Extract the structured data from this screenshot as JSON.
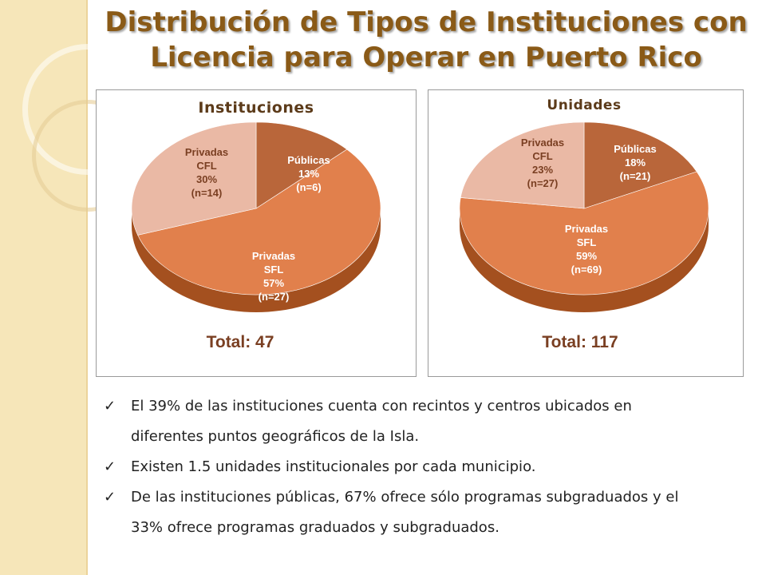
{
  "title": {
    "line1": "Distribución de Tipos de Instituciones con",
    "line2": "Licencia para Operar en Puerto Rico"
  },
  "colors": {
    "title": "#8a5a17",
    "publicas": "#b9663a",
    "sfl": "#e1804c",
    "cfl": "#eab9a5",
    "side": "#a4501f"
  },
  "chart_data": [
    {
      "type": "pie",
      "title": "Instituciones",
      "total_label": "Total: 47",
      "series": [
        {
          "name": "Públicas",
          "percent": 13,
          "count": 6,
          "label_lines": [
            "Públicas",
            "13%",
            "(n=6)"
          ]
        },
        {
          "name": "Privadas SFL",
          "percent": 57,
          "count": 27,
          "label_lines": [
            "Privadas",
            "SFL",
            "57%",
            "(n=27)"
          ]
        },
        {
          "name": "Privadas CFL",
          "percent": 30,
          "count": 14,
          "label_lines": [
            "Privadas",
            "CFL",
            "30%",
            "(n=14)"
          ]
        }
      ]
    },
    {
      "type": "pie",
      "title": "Unidades",
      "total_label": "Total: 117",
      "series": [
        {
          "name": "Públicas",
          "percent": 18,
          "count": 21,
          "label_lines": [
            "Públicas",
            "18%",
            "(n=21)"
          ]
        },
        {
          "name": "Privadas SFL",
          "percent": 59,
          "count": 69,
          "label_lines": [
            "Privadas",
            "SFL",
            "59%",
            "(n=69)"
          ]
        },
        {
          "name": "Privadas CFL",
          "percent": 23,
          "count": 27,
          "label_lines": [
            "Privadas",
            "CFL",
            "23%",
            "(n=27)"
          ]
        }
      ]
    }
  ],
  "bullets": [
    {
      "line1": "El 39% de las instituciones cuenta con recintos y centros ubicados en",
      "line2": "diferentes puntos geográficos de la Isla."
    },
    {
      "line1": "Existen 1.5 unidades institucionales por cada municipio.",
      "line2": ""
    },
    {
      "line1": "De las instituciones públicas, 67% ofrece sólo programas subgraduados y el",
      "line2": "33% ofrece programas graduados y subgraduados."
    }
  ],
  "bullet_icon": "check-icon"
}
